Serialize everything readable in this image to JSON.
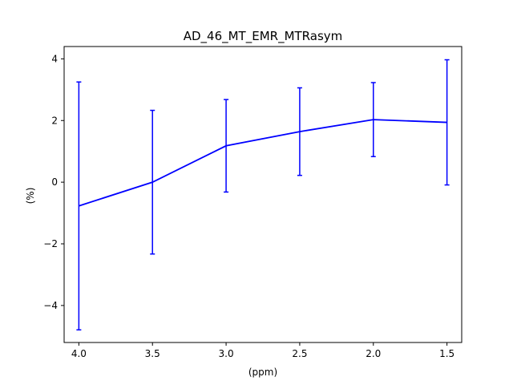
{
  "chart_data": {
    "type": "line",
    "title": "AD_46_MT_EMR_MTRasym",
    "xlabel": "(ppm)",
    "ylabel": "(%)",
    "x": [
      4.0,
      3.5,
      3.0,
      2.5,
      2.0,
      1.5
    ],
    "series": [
      {
        "values": [
          -0.77,
          0.0,
          1.18,
          1.64,
          2.03,
          1.94
        ],
        "error": [
          4.02,
          2.33,
          1.5,
          1.42,
          1.2,
          2.03
        ],
        "color": "#0000ff"
      }
    ],
    "xlim": [
      4.1,
      1.4
    ],
    "ylim": [
      -5.2,
      4.4
    ],
    "xticks": [
      4.0,
      3.5,
      3.0,
      2.5,
      2.0,
      1.5
    ],
    "xtick_labels": [
      "4.0",
      "3.5",
      "3.0",
      "2.5",
      "2.0",
      "1.5"
    ],
    "yticks": [
      -4,
      -2,
      0,
      2,
      4
    ],
    "ytick_labels": [
      "−4",
      "−2",
      "0",
      "2",
      "4"
    ],
    "x_reversed": true,
    "grid": false,
    "legend": "none"
  }
}
